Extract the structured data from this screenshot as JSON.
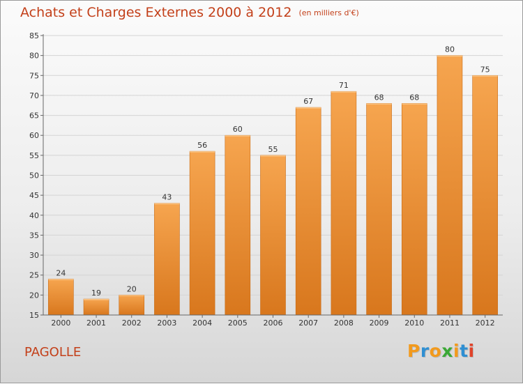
{
  "header": {
    "title": "Achats et Charges Externes 2000 à 2012",
    "subtitle": "(en milliers d'€)"
  },
  "footer": {
    "place": "PAGOLLE",
    "brand_letters": [
      "P",
      "r",
      "o",
      "x",
      "i",
      "t",
      "i"
    ]
  },
  "colors": {
    "title": "#c3401a",
    "bar_top": "#f6a54f",
    "bar_bottom": "#d8771d",
    "brand": [
      "#f29a1d",
      "#2f8fd2",
      "#f29a1d",
      "#3aa835",
      "#f29a1d",
      "#2f8fd2",
      "#e0432a"
    ]
  },
  "chart_data": {
    "type": "bar",
    "title": "Achats et Charges Externes 2000 à 2012",
    "subtitle": "(en milliers d'€)",
    "categories": [
      "2000",
      "2001",
      "2002",
      "2003",
      "2004",
      "2005",
      "2006",
      "2007",
      "2008",
      "2009",
      "2010",
      "2011",
      "2012"
    ],
    "values": [
      24,
      19,
      20,
      43,
      56,
      60,
      55,
      67,
      71,
      68,
      68,
      80,
      75
    ],
    "ylim": [
      15,
      85
    ],
    "yticks": [
      15,
      20,
      25,
      30,
      35,
      40,
      45,
      50,
      55,
      60,
      65,
      70,
      75,
      80,
      85
    ],
    "grid": true,
    "data_labels": true
  }
}
